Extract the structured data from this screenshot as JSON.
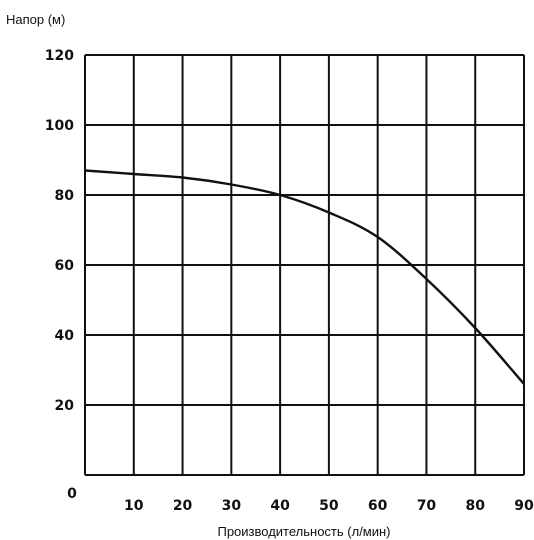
{
  "chart_data": {
    "type": "line",
    "xlabel": "Производительность (л/мин)",
    "ylabel": "Напор (м)",
    "xlim": [
      0,
      90
    ],
    "ylim": [
      0,
      120
    ],
    "x_ticks": [
      "10",
      "20",
      "30",
      "40",
      "50",
      "60",
      "70",
      "80",
      "90"
    ],
    "y_ticks": [
      "20",
      "40",
      "60",
      "80",
      "100",
      "120"
    ],
    "origin_label": "0",
    "grid": true,
    "series": [
      {
        "x": [
          0,
          10,
          20,
          30,
          40,
          50,
          60,
          70,
          80,
          90
        ],
        "y": [
          87,
          86,
          85,
          83,
          80,
          75,
          68,
          56,
          42,
          26
        ]
      }
    ]
  },
  "colors": {
    "line": "#111111",
    "grid": "#111111",
    "background": "#ffffff"
  }
}
